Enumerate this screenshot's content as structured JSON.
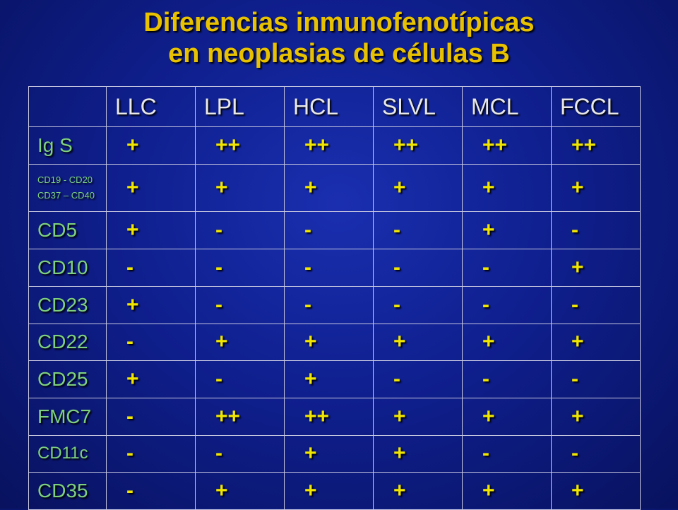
{
  "title": {
    "line1": "Diferencias inmunofenotípicas",
    "line2": "en neoplasias de células B"
  },
  "table": {
    "headers": [
      "LLC",
      "LPL",
      "HCL",
      "SLVL",
      "MCL",
      "FCCL"
    ],
    "rows": [
      {
        "label": "Ig S",
        "values": [
          "+",
          "++",
          "++",
          "++",
          "++",
          "++"
        ]
      },
      {
        "label": "CD19 - CD20",
        "label2": "CD37 – CD40",
        "values": [
          "+",
          "+",
          "+",
          "+",
          "+",
          "+"
        ]
      },
      {
        "label": "CD5",
        "values": [
          "+",
          "-",
          "-",
          "-",
          "+",
          "-"
        ]
      },
      {
        "label": "CD10",
        "values": [
          "-",
          "-",
          "-",
          "-",
          "-",
          "+"
        ]
      },
      {
        "label": "CD23",
        "values": [
          "+",
          "-",
          "-",
          "-",
          "-",
          "-"
        ]
      },
      {
        "label": "CD22",
        "values": [
          "-",
          "+",
          "+",
          "+",
          "+",
          "+"
        ]
      },
      {
        "label": "CD25",
        "values": [
          "+",
          "-",
          "+",
          "-",
          "-",
          "-"
        ]
      },
      {
        "label": "FMC7",
        "values": [
          "-",
          "++",
          "++",
          "+",
          "+",
          "+"
        ]
      },
      {
        "label": "CD11c",
        "values": [
          "-",
          "-",
          "+",
          "+",
          "-",
          "-"
        ]
      },
      {
        "label": "CD35",
        "values": [
          "-",
          "+",
          "+",
          "+",
          "+",
          "+"
        ]
      }
    ]
  },
  "colors": {
    "title": "#e8c200",
    "row_label": "#7ed07e",
    "value": "#f0e600",
    "header": "#e8e8e8",
    "background": "#0f1f8e"
  }
}
